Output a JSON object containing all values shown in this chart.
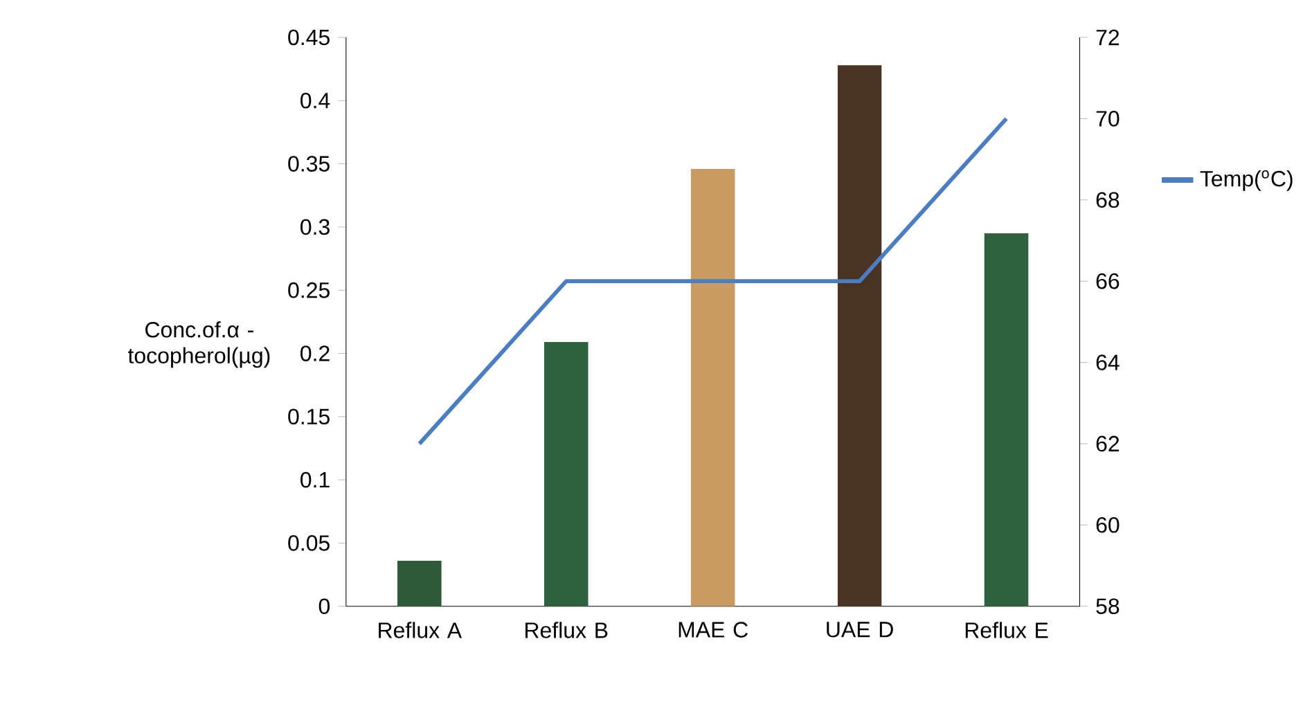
{
  "chart_data": {
    "type": "bar",
    "categories": [
      "Reflux A",
      "Reflux B",
      "MAE C",
      "UAE D",
      "Reflux E"
    ],
    "ylabel": "Conc.of.α - tocopherol(µg)",
    "series": [
      {
        "colors": [
          "#2e5a3a",
          "#2f6140",
          "#c99a62",
          "#4a3322",
          "#2f6140"
        ],
        "values": [
          0.036,
          0.209,
          0.346,
          0.428,
          0.295
        ]
      },
      {
        "type": "line",
        "axis": "y2",
        "name": "Temp($^{o}$C)",
        "color": "#4a7ec0",
        "values": [
          62,
          66,
          66,
          66,
          70
        ]
      }
    ],
    "ylim": [
      0,
      0.45
    ],
    "yticks": [
      0,
      0.05,
      0.1,
      0.15,
      0.2,
      0.25,
      0.3,
      0.35,
      0.4,
      0.45
    ],
    "y2lim": [
      58,
      72
    ],
    "y2ticks": [
      58,
      60,
      62,
      64,
      66,
      68,
      70,
      72
    ],
    "legend": "right",
    "grid": false
  }
}
